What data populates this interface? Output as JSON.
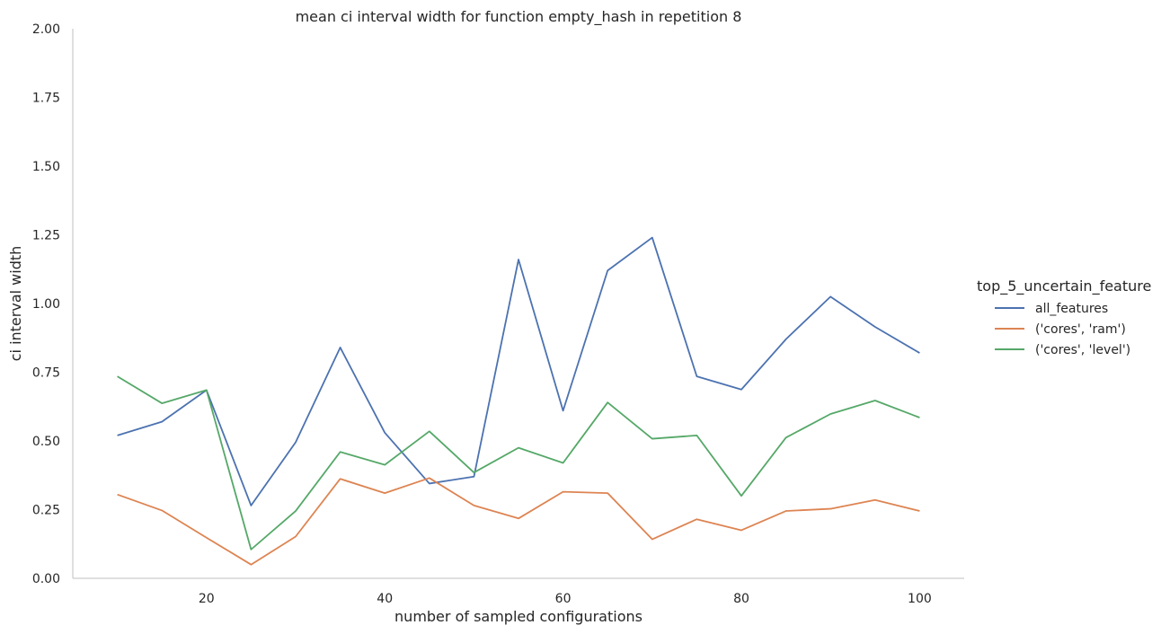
{
  "chart_data": {
    "type": "line",
    "title": "mean ci interval width for function empty_hash in repetition 8",
    "xlabel": "number of sampled configurations",
    "ylabel": "ci interval width",
    "xlim": [
      5,
      105
    ],
    "ylim": [
      0,
      2
    ],
    "xticks": [
      20,
      40,
      60,
      80,
      100
    ],
    "yticks": [
      "0.00",
      "0.25",
      "0.50",
      "0.75",
      "1.00",
      "1.25",
      "1.50",
      "1.75",
      "2.00"
    ],
    "grid": false,
    "legend_title": "top_5_uncertain_feature",
    "legend_position": "right",
    "x": [
      10,
      15,
      20,
      25,
      30,
      35,
      40,
      45,
      50,
      55,
      60,
      65,
      70,
      75,
      80,
      85,
      90,
      95,
      100
    ],
    "series": [
      {
        "name": "all_features",
        "color": "#4c72b0",
        "values": [
          0.52,
          0.57,
          0.685,
          0.265,
          0.495,
          0.84,
          0.53,
          0.345,
          0.37,
          1.16,
          0.61,
          1.12,
          1.24,
          0.735,
          0.687,
          0.87,
          1.025,
          0.915,
          0.82
        ]
      },
      {
        "name": "('cores', 'ram')",
        "color": "#dd8452",
        "values": [
          0.305,
          0.247,
          0.148,
          0.05,
          0.152,
          0.362,
          0.31,
          0.365,
          0.265,
          0.218,
          0.315,
          0.31,
          0.142,
          0.215,
          0.175,
          0.245,
          0.253,
          0.285,
          0.245
        ]
      },
      {
        "name": "('cores', 'level')",
        "color": "#55a868",
        "values": [
          0.735,
          0.637,
          0.685,
          0.105,
          0.245,
          0.46,
          0.413,
          0.535,
          0.385,
          0.475,
          0.42,
          0.64,
          0.508,
          0.52,
          0.3,
          0.512,
          0.598,
          0.647,
          0.585
        ]
      }
    ]
  }
}
